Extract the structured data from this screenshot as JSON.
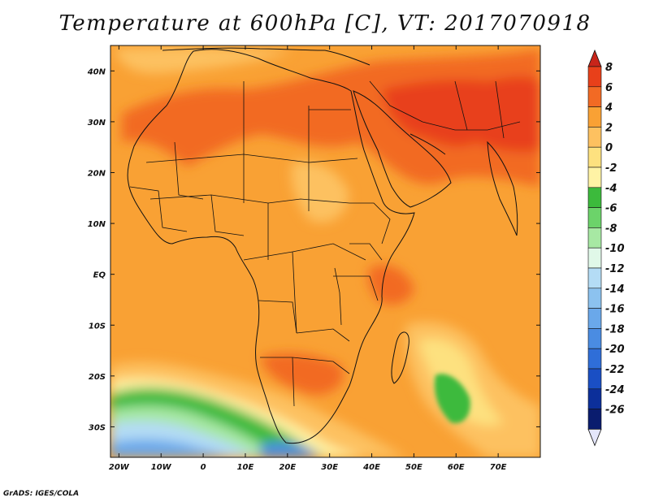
{
  "title": "Temperature at 600hPa [C], VT: 2017070918",
  "footer": "GrADS: IGES/COLA",
  "map": {
    "projection": "lat-lon",
    "lon_range": [
      -22,
      80
    ],
    "lat_range": [
      -36,
      45
    ],
    "lon_ticks": [
      {
        "value": -20,
        "label": "20W"
      },
      {
        "value": -10,
        "label": "10W"
      },
      {
        "value": 0,
        "label": "0"
      },
      {
        "value": 10,
        "label": "10E"
      },
      {
        "value": 20,
        "label": "20E"
      },
      {
        "value": 30,
        "label": "30E"
      },
      {
        "value": 40,
        "label": "40E"
      },
      {
        "value": 50,
        "label": "50E"
      },
      {
        "value": 60,
        "label": "60E"
      },
      {
        "value": 70,
        "label": "70E"
      }
    ],
    "lat_ticks": [
      {
        "value": 40,
        "label": "40N"
      },
      {
        "value": 30,
        "label": "30N"
      },
      {
        "value": 20,
        "label": "20N"
      },
      {
        "value": 10,
        "label": "10N"
      },
      {
        "value": 0,
        "label": "EQ"
      },
      {
        "value": -10,
        "label": "10S"
      },
      {
        "value": -20,
        "label": "20S"
      },
      {
        "value": -30,
        "label": "30S"
      }
    ],
    "background_color": "#f9a134"
  },
  "colorbar": {
    "levels": [
      {
        "label": "8",
        "color": "#e8401a"
      },
      {
        "label": "6",
        "color": "#f26a24"
      },
      {
        "label": "4",
        "color": "#f9a134"
      },
      {
        "label": "2",
        "color": "#fdc160"
      },
      {
        "label": "0",
        "color": "#fde17f"
      },
      {
        "label": "-2",
        "color": "#fff3a5"
      },
      {
        "label": "-4",
        "color": "#3cba3c"
      },
      {
        "label": "-6",
        "color": "#6cd36a"
      },
      {
        "label": "-8",
        "color": "#a7e8a3"
      },
      {
        "label": "-10",
        "color": "#e0f8e8"
      },
      {
        "label": "-12",
        "color": "#b4dcf5"
      },
      {
        "label": "-14",
        "color": "#8cc2ef"
      },
      {
        "label": "-16",
        "color": "#6aa8ea"
      },
      {
        "label": "-18",
        "color": "#4a8ce2"
      },
      {
        "label": "-20",
        "color": "#2f6ed8"
      },
      {
        "label": "-22",
        "color": "#1a4fc4"
      },
      {
        "label": "-24",
        "color": "#0c2f9a"
      },
      {
        "label": "-26",
        "color": "#0a1c6e"
      }
    ],
    "top_arrow_color": "#c8251a",
    "bottom_arrow_color": "#e4e6fb"
  }
}
